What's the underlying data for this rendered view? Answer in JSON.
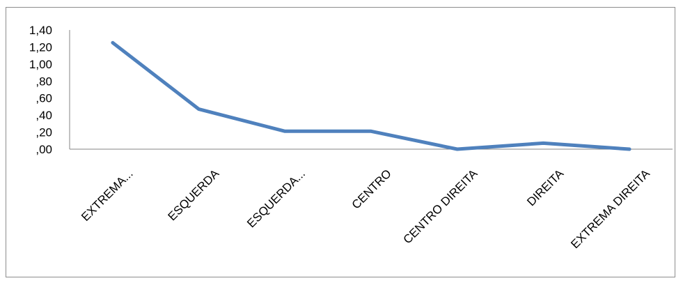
{
  "chart_data": {
    "type": "line",
    "title": "",
    "xlabel": "",
    "ylabel": "",
    "categories": [
      "EXTREMA...",
      "ESQUERDA",
      "ESQUERDA...",
      "CENTRO",
      "CENTRO DIREITA",
      "DIREITA",
      "EXTREMA DIREITA"
    ],
    "series": [
      {
        "values": [
          1.25,
          0.47,
          0.21,
          0.21,
          0.0,
          0.07,
          0.0
        ]
      }
    ],
    "ylim": [
      0,
      1.4
    ],
    "yticks": [
      0,
      0.2,
      0.4,
      0.6,
      0.8,
      1.0,
      1.2,
      1.4
    ],
    "ytick_labels": [
      ",00",
      ",20",
      ",40",
      ",60",
      ",80",
      "1,00",
      "1,20",
      "1,40"
    ],
    "grid": false,
    "legend": "none",
    "series_color": "#4f81bd",
    "axis_color": "#868686"
  }
}
